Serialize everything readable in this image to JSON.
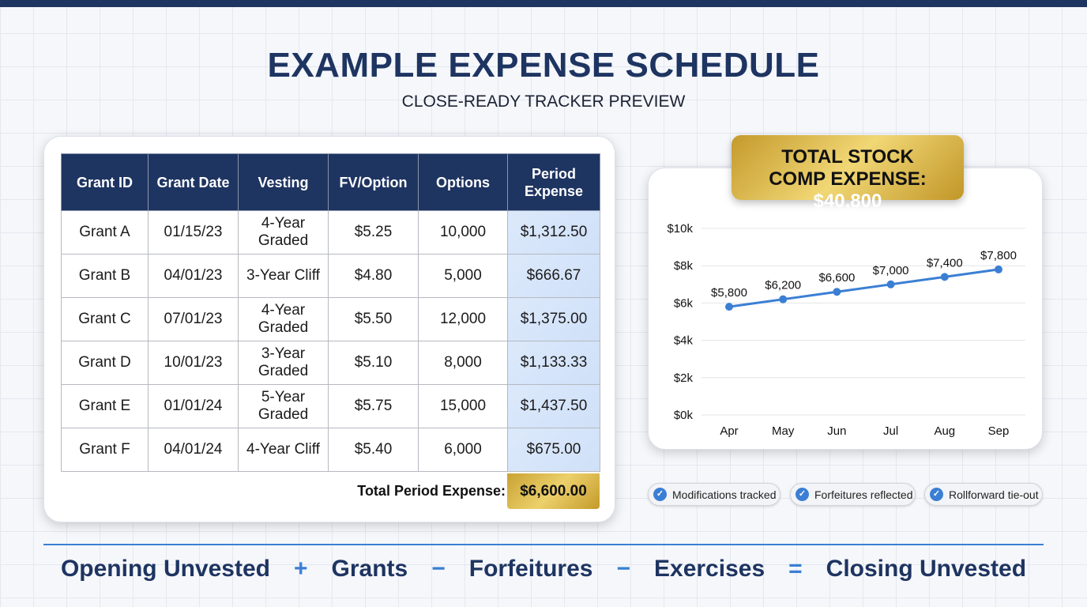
{
  "header": {
    "title": "EXAMPLE EXPENSE SCHEDULE",
    "subtitle": "CLOSE-READY TRACKER PREVIEW"
  },
  "table": {
    "columns": [
      "Grant ID",
      "Grant Date",
      "Vesting",
      "FV/Option",
      "Options",
      "Period Expense"
    ],
    "rows": [
      [
        "Grant A",
        "01/15/23",
        "4-Year Graded",
        "$5.25",
        "10,000",
        "$1,312.50"
      ],
      [
        "Grant B",
        "04/01/23",
        "3-Year Cliff",
        "$4.80",
        "5,000",
        "$666.67"
      ],
      [
        "Grant C",
        "07/01/23",
        "4-Year Graded",
        "$5.50",
        "12,000",
        "$1,375.00"
      ],
      [
        "Grant D",
        "10/01/23",
        "3-Year Graded",
        "$5.10",
        "8,000",
        "$1,133.33"
      ],
      [
        "Grant E",
        "01/01/24",
        "5-Year Graded",
        "$5.75",
        "15,000",
        "$1,437.50"
      ],
      [
        "Grant F",
        "04/01/24",
        "4-Year Cliff",
        "$5.40",
        "6,000",
        "$675.00"
      ]
    ],
    "total_label": "Total Period Expense:",
    "total_value": "$6,600.00"
  },
  "summary": {
    "label": "TOTAL STOCK COMP EXPENSE:",
    "value": "$40,800"
  },
  "chart_data": {
    "type": "line",
    "categories": [
      "Apr",
      "May",
      "Jun",
      "Jul",
      "Aug",
      "Sep"
    ],
    "values": [
      5800,
      6200,
      6600,
      7000,
      7400,
      7800
    ],
    "data_labels": [
      "$5,800",
      "$6,200",
      "$6,600",
      "$7,000",
      "$7,400",
      "$7,800"
    ],
    "yticks": [
      "$0k",
      "$2k",
      "$4k",
      "$6k",
      "$8k",
      "$10k"
    ],
    "ylim": [
      0,
      10000
    ],
    "grid": true,
    "line_color": "#3b7fd4"
  },
  "chips": [
    {
      "label": "Modifications tracked",
      "icon": "check-circle"
    },
    {
      "label": "Forfeitures reflected",
      "icon": "check-circle"
    },
    {
      "label": "Rollforward tie-out",
      "icon": "check-circle"
    }
  ],
  "formula": {
    "terms": [
      "Opening Unvested",
      "Grants",
      "Forfeitures",
      "Exercises",
      "Closing Unvested"
    ],
    "ops": [
      "+",
      "−",
      "−",
      "="
    ]
  },
  "colors": {
    "navy": "#1e3461",
    "accent": "#3b7fd4",
    "gold": "#d4af45"
  }
}
